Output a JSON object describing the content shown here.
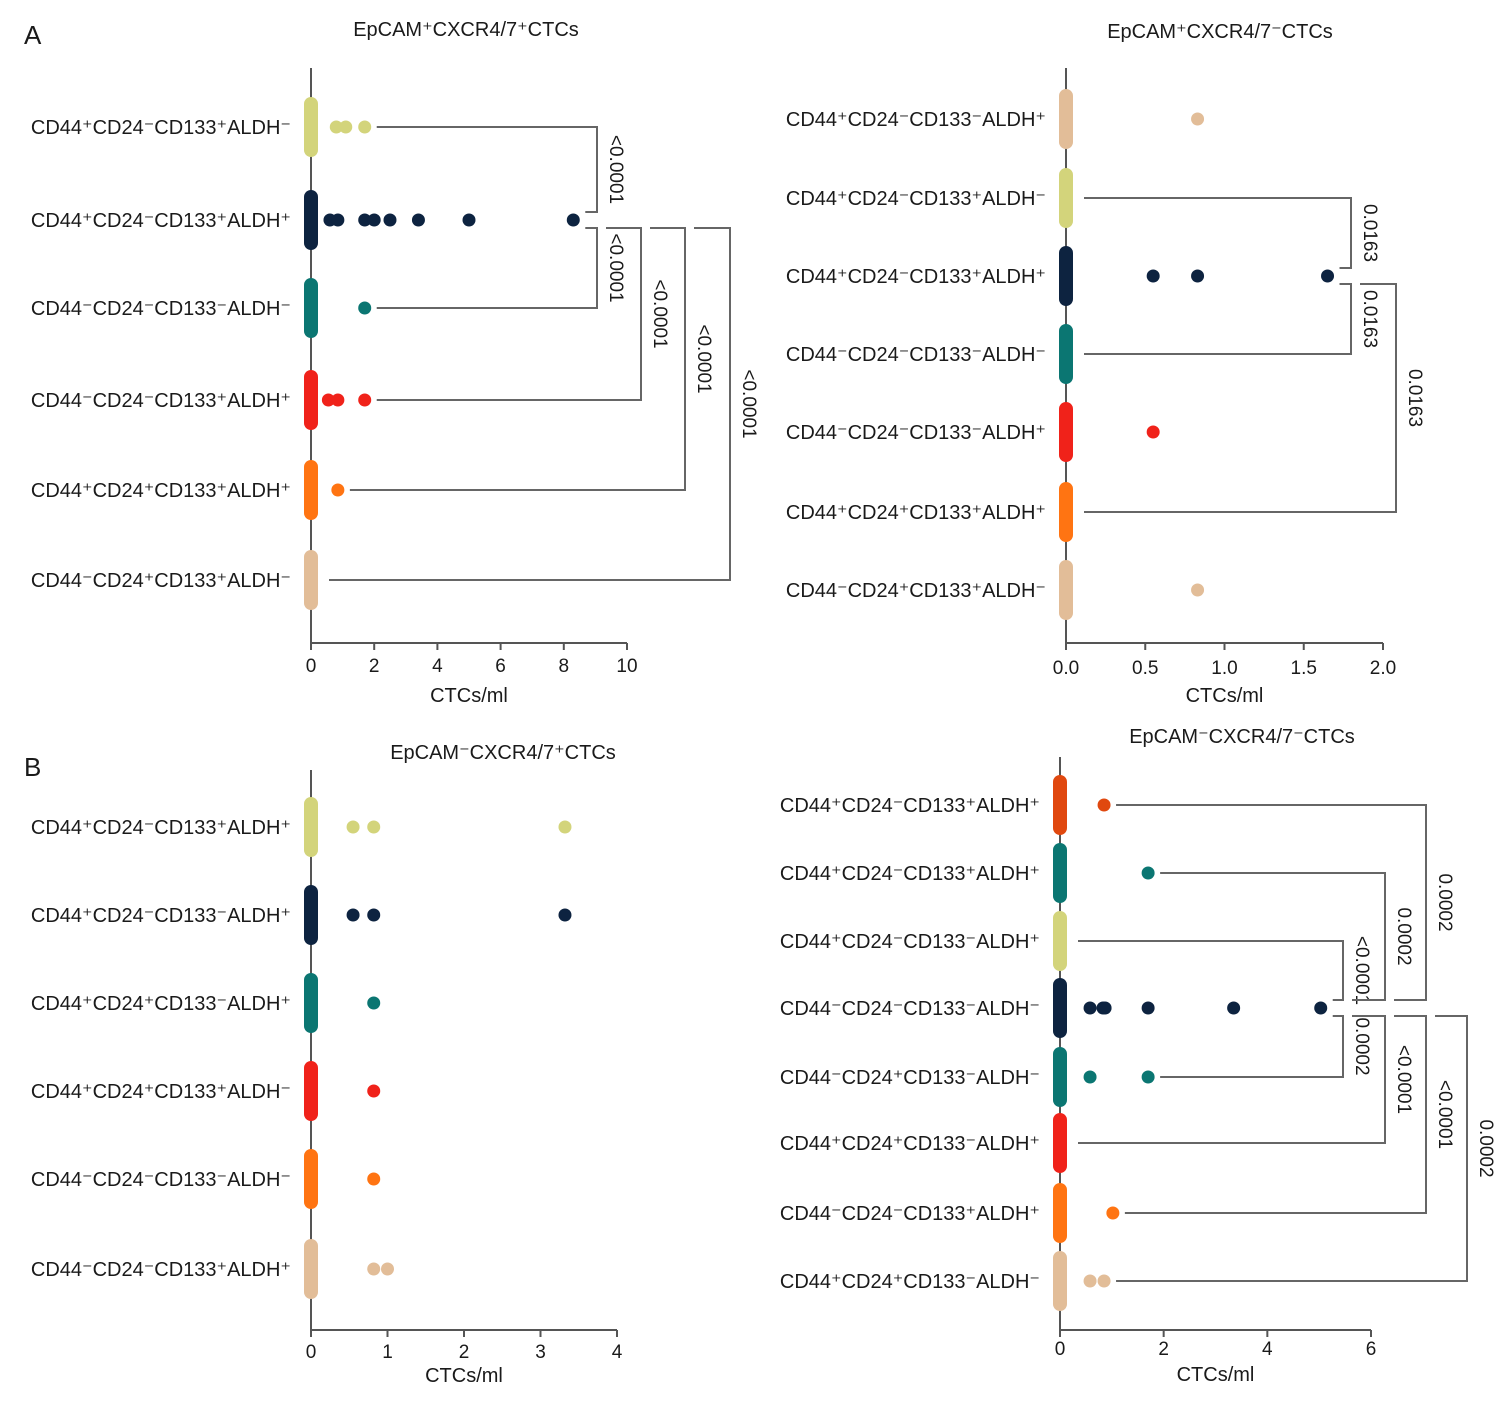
{
  "panel_letters": [
    "A",
    "B"
  ],
  "chart_data": [
    {
      "type": "scatter",
      "title": "EpCAM⁺CXCR4/7⁺CTCs",
      "xlabel": "CTCs/ml",
      "xlim": [
        0,
        10
      ],
      "xticks": [
        "0",
        "2",
        "4",
        "6",
        "8",
        "10"
      ],
      "xtick_values": [
        0,
        2,
        4,
        6,
        8,
        10
      ],
      "hub_row": 1,
      "rows": [
        {
          "label": "CD44⁺CD24⁻CD133⁺ALDH⁻",
          "color": "#d3d47b",
          "values": [
            0.8,
            1.1,
            1.7
          ]
        },
        {
          "label": "CD44⁺CD24⁻CD133⁺ALDH⁺",
          "color": "#0d2340",
          "values": [
            0.6,
            0.85,
            1.7,
            2.0,
            2.5,
            3.4,
            5.0,
            8.3
          ]
        },
        {
          "label": "CD44⁻CD24⁻CD133⁻ALDH⁻",
          "color": "#0b7672",
          "values": [
            1.7
          ]
        },
        {
          "label": "CD44⁻CD24⁻CD133⁺ALDH⁺",
          "color": "#f0221a",
          "values": [
            0.55,
            0.85,
            1.7
          ]
        },
        {
          "label": "CD44⁺CD24⁺CD133⁺ALDH⁺",
          "color": "#ff7412",
          "values": [
            0.85
          ]
        },
        {
          "label": "CD44⁻CD24⁺CD133⁺ALDH⁻",
          "color": "#e2bd98",
          "values": []
        }
      ],
      "comparisons": [
        {
          "row": 0,
          "p": "<0.0001"
        },
        {
          "row": 2,
          "p": "<0.0001"
        },
        {
          "row": 3,
          "p": "<0.0001"
        },
        {
          "row": 4,
          "p": "<0.0001"
        },
        {
          "row": 5,
          "p": "<0.0001"
        }
      ]
    },
    {
      "type": "scatter",
      "title": "EpCAM⁺CXCR4/7⁻CTCs",
      "xlabel": "CTCs/ml",
      "xlim": [
        0,
        2
      ],
      "xticks": [
        "0.0",
        "0.5",
        "1.0",
        "1.5",
        "2.0"
      ],
      "xtick_values": [
        0,
        0.5,
        1,
        1.5,
        2
      ],
      "hub_row": 2,
      "rows": [
        {
          "label": "CD44⁺CD24⁻CD133⁻ALDH⁺",
          "color": "#e2bd98",
          "values": [
            0.83
          ]
        },
        {
          "label": "CD44⁺CD24⁻CD133⁺ALDH⁻",
          "color": "#d3d47b",
          "values": []
        },
        {
          "label": "CD44⁺CD24⁻CD133⁺ALDH⁺",
          "color": "#0d2340",
          "values": [
            0.55,
            0.83,
            1.65
          ]
        },
        {
          "label": "CD44⁻CD24⁻CD133⁻ALDH⁻",
          "color": "#0b7672",
          "values": []
        },
        {
          "label": "CD44⁻CD24⁻CD133⁻ALDH⁺",
          "color": "#f0221a",
          "values": [
            0.55
          ]
        },
        {
          "label": "CD44⁺CD24⁺CD133⁺ALDH⁺",
          "color": "#ff7412",
          "values": []
        },
        {
          "label": "CD44⁻CD24⁺CD133⁺ALDH⁻",
          "color": "#e2bd98",
          "values": [
            0.83
          ]
        }
      ],
      "comparisons": [
        {
          "row": 1,
          "p": "0.0163"
        },
        {
          "row": 3,
          "p": "0.0163"
        },
        {
          "row": 5,
          "p": "0.0163"
        }
      ]
    },
    {
      "type": "scatter",
      "title": "EpCAM⁻CXCR4/7⁺CTCs",
      "xlabel": "CTCs/ml",
      "xlim": [
        0,
        4
      ],
      "xticks": [
        "0",
        "1",
        "2",
        "3",
        "4"
      ],
      "xtick_values": [
        0,
        1,
        2,
        3,
        4
      ],
      "hub_row": null,
      "rows": [
        {
          "label": "CD44⁺CD24⁻CD133⁺ALDH⁺",
          "color": "#d3d47b",
          "values": [
            0.55,
            0.82,
            3.32
          ]
        },
        {
          "label": "CD44⁺CD24⁻CD133⁻ALDH⁺",
          "color": "#0d2340",
          "values": [
            0.55,
            0.82,
            3.32
          ]
        },
        {
          "label": "CD44⁺CD24⁺CD133⁻ALDH⁺",
          "color": "#0b7672",
          "values": [
            0.82
          ]
        },
        {
          "label": "CD44⁺CD24⁺CD133⁺ALDH⁻",
          "color": "#f0221a",
          "values": [
            0.82
          ]
        },
        {
          "label": "CD44⁻CD24⁻CD133⁻ALDH⁻",
          "color": "#ff7412",
          "values": [
            0.82
          ]
        },
        {
          "label": "CD44⁻CD24⁻CD133⁺ALDH⁺",
          "color": "#e2bd98",
          "values": [
            0.82,
            1.0
          ]
        }
      ],
      "comparisons": []
    },
    {
      "type": "scatter",
      "title": "EpCAM⁻CXCR4/7⁻CTCs",
      "xlabel": "CTCs/ml",
      "xlim": [
        0,
        6
      ],
      "xticks": [
        "0",
        "2",
        "4",
        "6"
      ],
      "xtick_values": [
        0,
        2,
        4,
        6
      ],
      "hub_row": 3,
      "rows": [
        {
          "label": "CD44⁺CD24⁻CD133⁺ALDH⁺",
          "color": "#e0480f",
          "values": [
            0.85
          ]
        },
        {
          "label": "CD44⁺CD24⁻CD133⁺ALDH⁺",
          "color": "#0b7672",
          "values": [
            1.7
          ]
        },
        {
          "label": "CD44⁺CD24⁻CD133⁻ALDH⁺",
          "color": "#d3d47b",
          "values": []
        },
        {
          "label": "CD44⁻CD24⁻CD133⁻ALDH⁻",
          "color": "#0d2340",
          "values": [
            0.58,
            0.83,
            0.87,
            1.7,
            3.35,
            5.03
          ]
        },
        {
          "label": "CD44⁻CD24⁺CD133⁻ALDH⁻",
          "color": "#0b7672",
          "values": [
            0.58,
            1.7
          ]
        },
        {
          "label": "CD44⁺CD24⁺CD133⁻ALDH⁺",
          "color": "#f0221a",
          "values": []
        },
        {
          "label": "CD44⁻CD24⁻CD133⁺ALDH⁺",
          "color": "#ff7412",
          "values": [
            1.02
          ]
        },
        {
          "label": "CD44⁺CD24⁺CD133⁻ALDH⁻",
          "color": "#e2bd98",
          "values": [
            0.58,
            0.85
          ]
        }
      ],
      "comparisons": [
        {
          "row": 2,
          "p": "<0.0001"
        },
        {
          "row": 4,
          "p": "0.0002"
        },
        {
          "row": 1,
          "p": "0.0002"
        },
        {
          "row": 5,
          "p": "<0.0001"
        },
        {
          "row": 0,
          "p": "0.0002"
        },
        {
          "row": 6,
          "p": "<0.0001"
        },
        {
          "row": 7,
          "p": "0.0002"
        }
      ]
    }
  ]
}
